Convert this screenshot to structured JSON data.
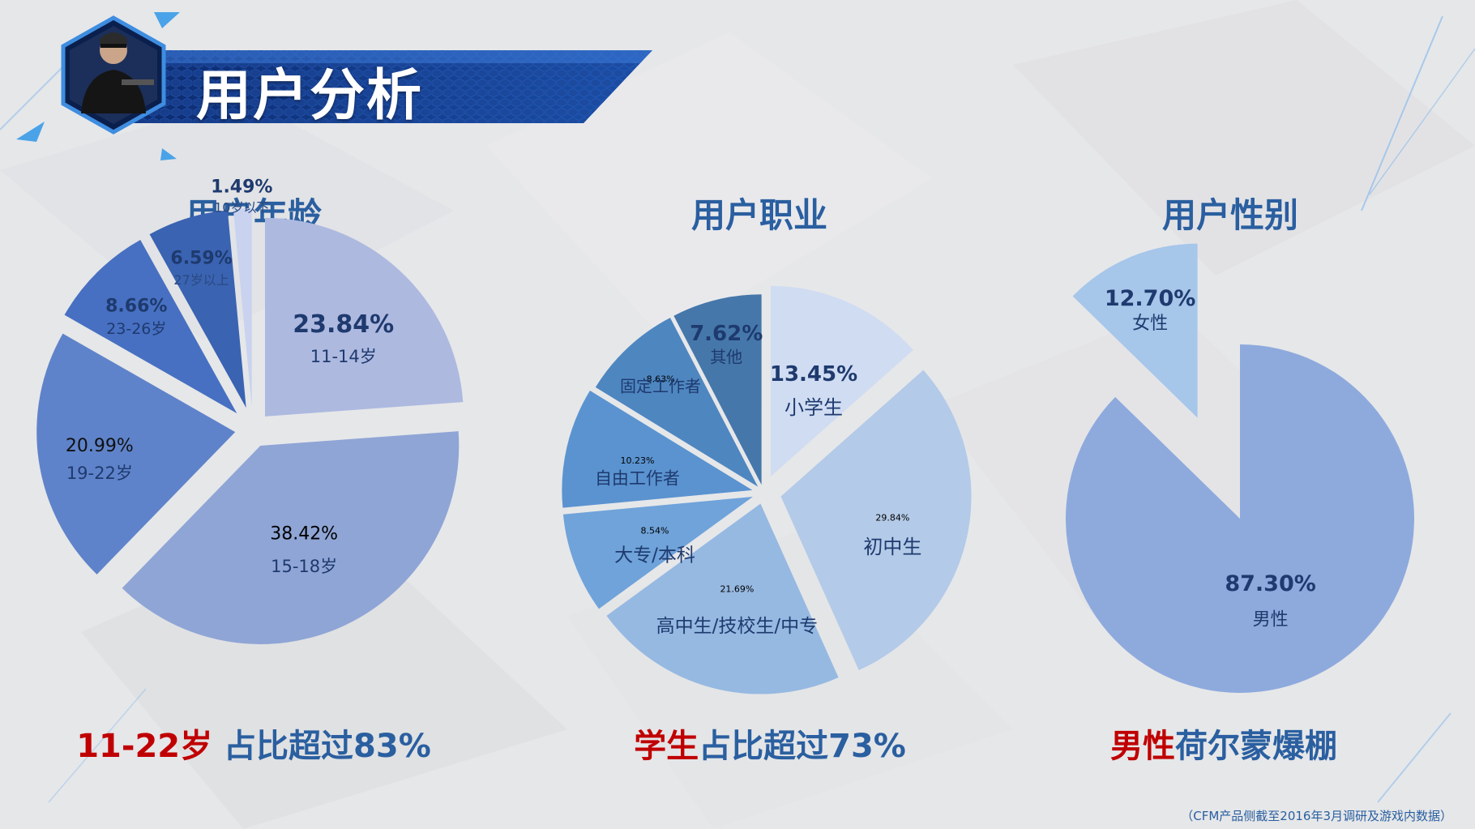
{
  "page": {
    "title": "用户分析",
    "footnote": "（CFM产品侧截至2016年3月调研及游戏内数据）"
  },
  "sections": [
    {
      "title": "用户年龄",
      "conclusion_highlight": "11-22岁",
      "conclusion_rest": " 占比超过83%"
    },
    {
      "title": "用户职业",
      "conclusion_highlight": "学生",
      "conclusion_rest": "占比超过73%"
    },
    {
      "title": "用户性别",
      "conclusion_highlight": "男性",
      "conclusion_rest": "荷尔蒙爆棚"
    }
  ],
  "chart_data": [
    {
      "type": "pie",
      "title": "用户年龄",
      "slices": [
        {
          "label": "11-14岁",
          "value": 23.84,
          "value_label": "23.84%",
          "color": "#aeb9e0"
        },
        {
          "label": "15-18岁",
          "value": 38.42,
          "value_label": "38.42%",
          "color": "#8fa5d6"
        },
        {
          "label": "19-22岁",
          "value": 20.99,
          "value_label": "20.99%",
          "color": "#5f83ca"
        },
        {
          "label": "23-26岁",
          "value": 8.66,
          "value_label": "8.66%",
          "color": "#4770c2"
        },
        {
          "label": "27岁以上",
          "value": 6.59,
          "value_label": "6.59%",
          "color": "#3a63b2"
        },
        {
          "label": "10岁以下",
          "value": 1.49,
          "value_label": "1.49%",
          "color": "#c9d3ef"
        }
      ]
    },
    {
      "type": "pie",
      "title": "用户职业",
      "slices": [
        {
          "label": "小学生",
          "value": 13.45,
          "value_label": "13.45%",
          "color": "#cfdcf2"
        },
        {
          "label": "初中生",
          "value": 29.84,
          "value_label": "29.84%",
          "color": "#b3cae8"
        },
        {
          "label": "高中生/技校生/中专",
          "value": 21.69,
          "value_label": "21.69%",
          "color": "#96b9e2"
        },
        {
          "label": "大专/本科",
          "value": 8.54,
          "value_label": "8.54%",
          "color": "#6fa3da"
        },
        {
          "label": "自由工作者",
          "value": 10.23,
          "value_label": "10.23%",
          "color": "#5a93d0"
        },
        {
          "label": "固定工作者",
          "value": 8.63,
          "value_label": "8.63%",
          "color": "#4e86c0"
        },
        {
          "label": "其他",
          "value": 7.62,
          "value_label": "7.62%",
          "color": "#4577aa"
        }
      ]
    },
    {
      "type": "pie",
      "title": "用户性别",
      "slices": [
        {
          "label": "男性",
          "value": 87.3,
          "value_label": "87.30%",
          "color": "#8eaadd"
        },
        {
          "label": "女性",
          "value": 12.7,
          "value_label": "12.70%",
          "color": "#a6c6ea"
        }
      ]
    }
  ]
}
